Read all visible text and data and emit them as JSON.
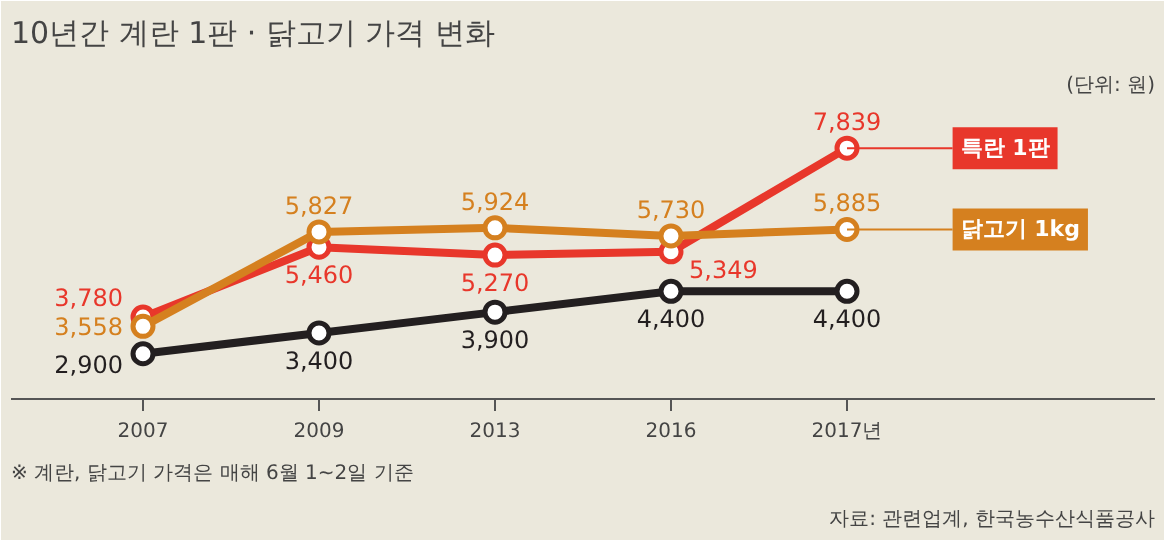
{
  "chart_data": {
    "type": "line",
    "title": "10년간 계란 1판 · 닭고기 가격 변화",
    "subtitle": "(단위: 원)",
    "categories": [
      "2007",
      "2009",
      "2013",
      "2016",
      "2017년"
    ],
    "series": [
      {
        "name": "특란 1판",
        "color": "#e8372b",
        "values": [
          3780,
          5460,
          5270,
          5349,
          7839
        ],
        "value_labels": [
          "3,780",
          "5,460",
          "5,270",
          "5,349",
          "7,839"
        ]
      },
      {
        "name": "닭고기 1kg",
        "color": "#d5801f",
        "values": [
          3558,
          5827,
          5924,
          5730,
          5885
        ],
        "value_labels": [
          "3,558",
          "5,827",
          "5,924",
          "5,730",
          "5,885"
        ]
      },
      {
        "color": "#231f20",
        "values": [
          2900,
          3400,
          3900,
          4400,
          4400
        ],
        "value_labels": [
          "2,900",
          "3,400",
          "3,900",
          "4,400",
          "4,400"
        ]
      }
    ],
    "marker": "circle",
    "grid": false,
    "legend": "right",
    "annotations": [
      "※ 계란, 닭고기 가격은 매해 6월 1~2일 기준",
      "자료: 관련업계, 한국농수산식품공사"
    ]
  }
}
